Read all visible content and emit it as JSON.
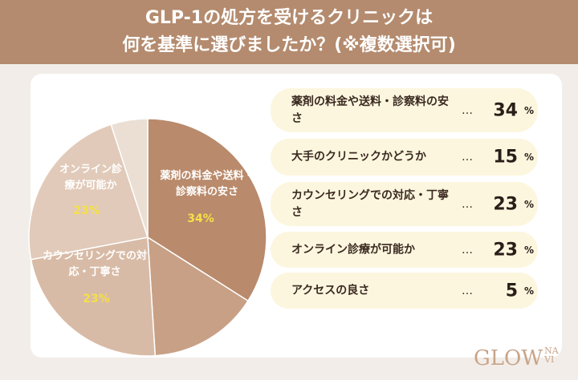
{
  "chart_data": {
    "type": "pie",
    "title": [
      "GLP-1の処方を受けるクリニックは",
      "何を基準に選びましたか？(※複数選択可)"
    ],
    "categories": [
      "薬剤の料金や送料・診察料の安さ",
      "大手のクリニックかどうか",
      "カウンセリングでの対応・丁寧さ",
      "オンライン診療が可能か",
      "アクセスの良さ"
    ],
    "values": [
      34,
      15,
      23,
      23,
      5
    ],
    "unit": "%",
    "leader": "…",
    "colors": [
      "#b98a6b",
      "#c8a085",
      "#d8bba6",
      "#e1cab9",
      "#ebdfd4"
    ],
    "logo": {
      "main": "GLOW",
      "sub": [
        "NA",
        "VI"
      ]
    }
  }
}
